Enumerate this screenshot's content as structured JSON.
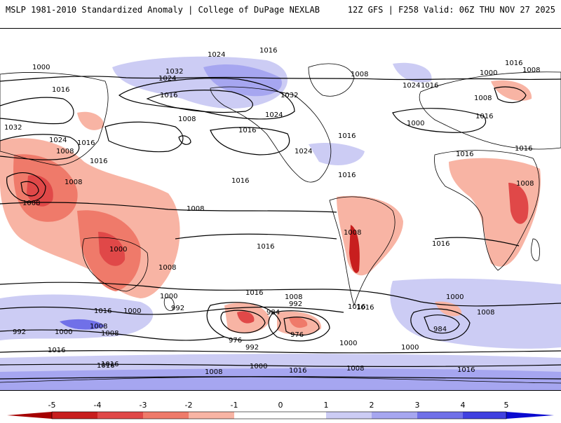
{
  "header": {
    "title": "MSLP 1981-2010 Standardized Anomaly | College of DuPage NEXLAB",
    "run_info": "12Z GFS | F258 Valid: 06Z THU NOV 27 2025"
  },
  "colorbar": {
    "ticks": [
      "-5",
      "-4",
      "-3",
      "-2",
      "-1",
      "0",
      "1",
      "2",
      "3",
      "4",
      "5"
    ],
    "colors": {
      "neg5": "#a50000",
      "neg4": "#c81e1e",
      "neg3": "#e04848",
      "neg2": "#ef7a6a",
      "neg1": "#f8b4a4",
      "zero": "#ffffff",
      "pos1": "#ccccf4",
      "pos2": "#a6a6f0",
      "pos3": "#7070e8",
      "pos4": "#4040e0",
      "pos5": "#0a0ad0"
    }
  },
  "contour_labels": [
    {
      "text": "1016"
    },
    {
      "text": "1024"
    },
    {
      "text": "1000"
    },
    {
      "text": "1008"
    },
    {
      "text": "1032"
    },
    {
      "text": "1016"
    },
    {
      "text": "1008"
    },
    {
      "text": "1000"
    },
    {
      "text": "1008"
    },
    {
      "text": "1024"
    },
    {
      "text": "1016"
    },
    {
      "text": "1016"
    },
    {
      "text": "1008"
    },
    {
      "text": "1016"
    },
    {
      "text": "1032"
    },
    {
      "text": "1016"
    },
    {
      "text": "1024"
    },
    {
      "text": "1016"
    },
    {
      "text": "1024"
    },
    {
      "text": "1016"
    },
    {
      "text": "1024"
    },
    {
      "text": "1016"
    },
    {
      "text": "1000"
    },
    {
      "text": "1016"
    },
    {
      "text": "1008"
    },
    {
      "text": "1008"
    },
    {
      "text": "1016"
    },
    {
      "text": "1016"
    },
    {
      "text": "1032"
    },
    {
      "text": "1008"
    },
    {
      "text": "1024"
    },
    {
      "text": "1016"
    },
    {
      "text": "1008"
    },
    {
      "text": "1016"
    },
    {
      "text": "1016"
    },
    {
      "text": "1008"
    },
    {
      "text": "1008"
    },
    {
      "text": "1000"
    },
    {
      "text": "1016"
    },
    {
      "text": "1008"
    },
    {
      "text": "1000"
    },
    {
      "text": "992"
    },
    {
      "text": "1016"
    },
    {
      "text": "1008"
    },
    {
      "text": "1016"
    },
    {
      "text": "992"
    },
    {
      "text": "984"
    },
    {
      "text": "1016"
    },
    {
      "text": "1000"
    },
    {
      "text": "1008"
    },
    {
      "text": "1016"
    },
    {
      "text": "992"
    },
    {
      "text": "1000"
    },
    {
      "text": "1008"
    },
    {
      "text": "1016"
    },
    {
      "text": "976"
    },
    {
      "text": "976"
    },
    {
      "text": "992"
    },
    {
      "text": "1000"
    },
    {
      "text": "1000"
    },
    {
      "text": "1008"
    },
    {
      "text": "984"
    },
    {
      "text": "1016"
    },
    {
      "text": "1008"
    },
    {
      "text": "1000"
    },
    {
      "text": "1016"
    },
    {
      "text": "1008"
    },
    {
      "text": "1016"
    },
    {
      "text": "1000"
    },
    {
      "text": "1016"
    }
  ]
}
